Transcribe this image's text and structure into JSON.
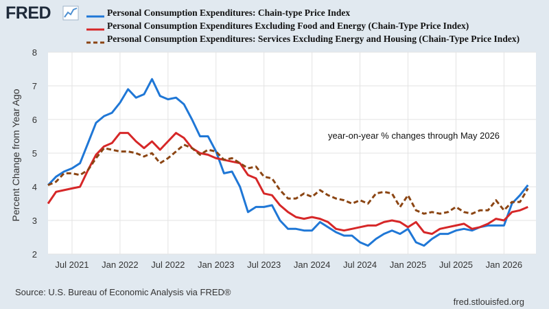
{
  "header": {
    "logo_text": "FRED",
    "logo_icon": "chart-line-icon"
  },
  "footer": {
    "source": "Source: U.S. Bureau of Economic Analysis via FRED®",
    "site": "fred.stlouisfed.org"
  },
  "chart_data": {
    "type": "line",
    "title": "",
    "ylabel": "Percent Change from Year Ago",
    "xlabel": "",
    "ylim": [
      2,
      8
    ],
    "yticks": [
      2,
      3,
      4,
      5,
      6,
      7,
      8
    ],
    "x_start": "2021-04",
    "x_end": "2026-05",
    "xticks": [
      {
        "label": "Jul 2021",
        "date": "2021-07"
      },
      {
        "label": "Jan 2022",
        "date": "2022-01"
      },
      {
        "label": "Jul 2022",
        "date": "2022-07"
      },
      {
        "label": "Jan 2023",
        "date": "2023-01"
      },
      {
        "label": "Jul 2023",
        "date": "2023-07"
      },
      {
        "label": "Jan 2024",
        "date": "2024-01"
      },
      {
        "label": "Jul 2024",
        "date": "2024-07"
      },
      {
        "label": "Jan 2025",
        "date": "2025-01"
      },
      {
        "label": "Jul 2025",
        "date": "2025-07"
      },
      {
        "label": "Jan 2026",
        "date": "2026-01"
      }
    ],
    "grid": true,
    "legend_position": "top",
    "annotation": "year-on-year % changes through May 2026",
    "series": [
      {
        "name": "Personal Consumption Expenditures: Chain-type Price Index",
        "color": "#1f77d6",
        "style": "solid",
        "values": [
          4.05,
          4.3,
          4.45,
          4.55,
          4.7,
          5.3,
          5.9,
          6.1,
          6.2,
          6.5,
          6.9,
          6.65,
          6.75,
          7.2,
          6.7,
          6.6,
          6.65,
          6.45,
          6.0,
          5.5,
          5.5,
          5.05,
          4.4,
          4.45,
          4.0,
          3.25,
          3.4,
          3.4,
          3.45,
          3.0,
          2.75,
          2.75,
          2.7,
          2.7,
          2.95,
          2.8,
          2.65,
          2.55,
          2.55,
          2.35,
          2.25,
          2.45,
          2.6,
          2.7,
          2.6,
          2.75,
          2.35,
          2.25,
          2.45,
          2.6,
          2.6,
          2.7,
          2.75,
          2.7,
          2.8,
          2.85,
          2.85,
          2.85,
          3.5,
          3.75,
          4.05
        ]
      },
      {
        "name": "Personal Consumption Expenditures Excluding Food and Energy (Chain-Type Price Index)",
        "color": "#d62728",
        "style": "solid",
        "values": [
          3.5,
          3.85,
          3.9,
          3.95,
          4.0,
          4.5,
          4.95,
          5.2,
          5.3,
          5.6,
          5.6,
          5.35,
          5.15,
          5.35,
          5.1,
          5.35,
          5.6,
          5.45,
          5.15,
          5.0,
          4.95,
          4.85,
          4.8,
          4.75,
          4.7,
          4.35,
          4.25,
          3.8,
          3.75,
          3.45,
          3.25,
          3.1,
          3.05,
          3.1,
          3.05,
          2.95,
          2.75,
          2.7,
          2.75,
          2.8,
          2.85,
          2.85,
          2.95,
          3.0,
          2.95,
          2.8,
          2.95,
          2.65,
          2.6,
          2.75,
          2.8,
          2.85,
          2.9,
          2.75,
          2.8,
          2.9,
          3.05,
          3.0,
          3.25,
          3.3,
          3.4
        ]
      },
      {
        "name": "Personal Consumption Expenditures: Services Excluding Energy and Housing (Chain-Type Price Index)",
        "color": "#8b4513",
        "style": "dashed",
        "values": [
          4.05,
          4.15,
          4.4,
          4.4,
          4.35,
          4.5,
          4.85,
          5.15,
          5.1,
          5.05,
          5.05,
          5.0,
          4.9,
          5.0,
          4.7,
          4.85,
          5.05,
          5.25,
          5.15,
          4.95,
          5.1,
          5.05,
          4.8,
          4.85,
          4.7,
          4.55,
          4.6,
          4.3,
          4.25,
          3.9,
          3.65,
          3.65,
          3.8,
          3.7,
          3.9,
          3.75,
          3.65,
          3.6,
          3.5,
          3.6,
          3.5,
          3.8,
          3.85,
          3.8,
          3.4,
          3.75,
          3.3,
          3.2,
          3.25,
          3.2,
          3.25,
          3.4,
          3.25,
          3.2,
          3.3,
          3.3,
          3.6,
          3.3,
          3.55,
          3.55,
          3.95
        ]
      }
    ]
  }
}
